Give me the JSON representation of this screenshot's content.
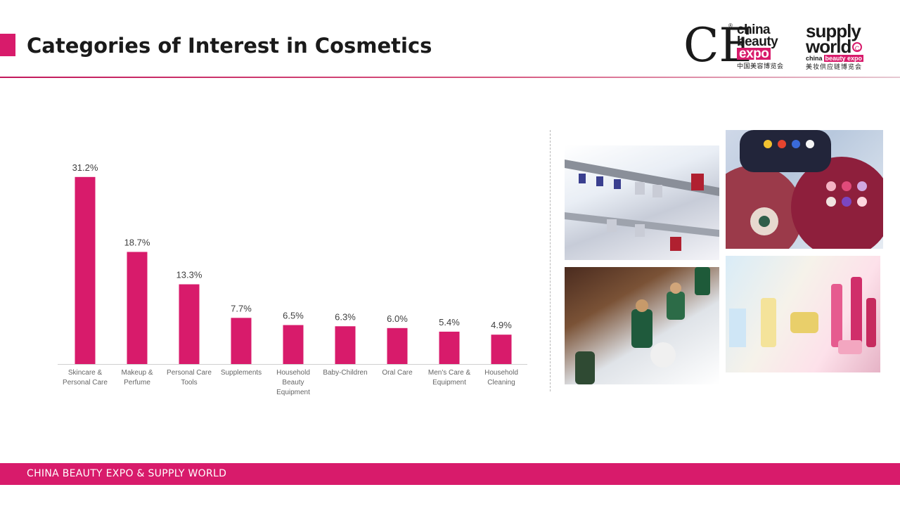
{
  "header": {
    "title": "Categories of Interest in Cosmetics",
    "accent_color": "#d81b6b"
  },
  "logos": {
    "china_beauty_expo": {
      "glyph": "CE",
      "registered": "®",
      "line1": "china",
      "line2": "beauty",
      "line3": "expo",
      "chinese": "中国美容博览会"
    },
    "supply_world": {
      "line1": "supply",
      "line2": "world",
      "sub_prefix": "china",
      "sub_highlight": "beauty expo",
      "chinese": "美妆供应链博览会"
    }
  },
  "chart_data": {
    "type": "bar",
    "categories": [
      [
        "Skincare &",
        "Personal Care"
      ],
      [
        "Makeup &",
        "Perfume"
      ],
      [
        "Personal Care",
        "Tools"
      ],
      [
        "Supplements"
      ],
      [
        "Household",
        "Beauty",
        "Equipment"
      ],
      [
        "Baby-Children"
      ],
      [
        "Oral Care"
      ],
      [
        "Men's Care &",
        "Equipment"
      ],
      [
        "Household",
        "Cleaning"
      ]
    ],
    "values": [
      31.2,
      18.7,
      13.3,
      7.7,
      6.5,
      6.3,
      6.0,
      5.4,
      4.9
    ],
    "value_labels": [
      "31.2%",
      "18.7%",
      "13.3%",
      "7.7%",
      "6.5%",
      "6.3%",
      "6.0%",
      "5.4%",
      "4.9%"
    ],
    "ylim": [
      0,
      32
    ],
    "grid": false,
    "legend": "none",
    "bar_color": "#d81b6b"
  },
  "photos": [
    {
      "icon": "perfume-shelf-photo"
    },
    {
      "icon": "eyeshadow-palette-photo"
    },
    {
      "icon": "fragrance-bottles-photo"
    },
    {
      "icon": "skincare-products-photo"
    }
  ],
  "footer": {
    "text": "CHINA BEAUTY EXPO & SUPPLY  WORLD",
    "band_color": "#d81b6b"
  }
}
